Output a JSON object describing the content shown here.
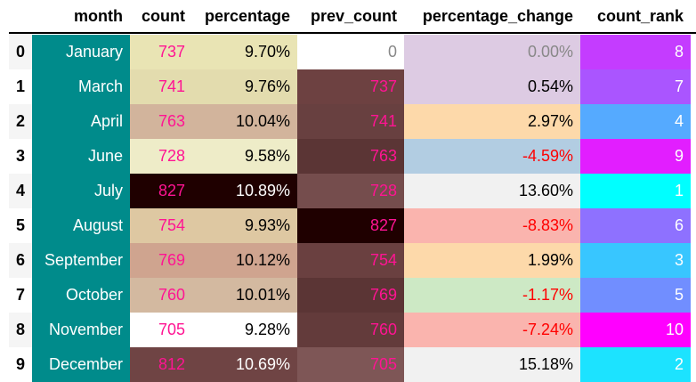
{
  "chart_data": {
    "type": "table",
    "columns": [
      "month",
      "count",
      "percentage",
      "prev_count",
      "percentage_change",
      "count_rank"
    ],
    "rows": [
      {
        "index": "0",
        "month": "January",
        "count": "737",
        "percentage": "9.70%",
        "prev_count": "0",
        "percentage_change": "0.00%",
        "count_rank": "8"
      },
      {
        "index": "1",
        "month": "March",
        "count": "741",
        "percentage": "9.76%",
        "prev_count": "737",
        "percentage_change": "0.54%",
        "count_rank": "7"
      },
      {
        "index": "2",
        "month": "April",
        "count": "763",
        "percentage": "10.04%",
        "prev_count": "741",
        "percentage_change": "2.97%",
        "count_rank": "4"
      },
      {
        "index": "3",
        "month": "June",
        "count": "728",
        "percentage": "9.58%",
        "prev_count": "763",
        "percentage_change": "-4.59%",
        "count_rank": "9"
      },
      {
        "index": "4",
        "month": "July",
        "count": "827",
        "percentage": "10.89%",
        "prev_count": "728",
        "percentage_change": "13.60%",
        "count_rank": "1"
      },
      {
        "index": "5",
        "month": "August",
        "count": "754",
        "percentage": "9.93%",
        "prev_count": "827",
        "percentage_change": "-8.83%",
        "count_rank": "6"
      },
      {
        "index": "6",
        "month": "September",
        "count": "769",
        "percentage": "10.12%",
        "prev_count": "754",
        "percentage_change": "1.99%",
        "count_rank": "3"
      },
      {
        "index": "7",
        "month": "October",
        "count": "760",
        "percentage": "10.01%",
        "prev_count": "769",
        "percentage_change": "-1.17%",
        "count_rank": "5"
      },
      {
        "index": "8",
        "month": "November",
        "count": "705",
        "percentage": "9.28%",
        "prev_count": "760",
        "percentage_change": "-7.24%",
        "count_rank": "10"
      },
      {
        "index": "9",
        "month": "December",
        "count": "812",
        "percentage": "10.69%",
        "prev_count": "705",
        "percentage_change": "15.18%",
        "count_rank": "2"
      }
    ],
    "styles": {
      "month_bg": "#008b8b",
      "month_text": "#ffffff",
      "count_text": "#ff1493",
      "count_percentage_bg": [
        "#e9e4b4",
        "#e3dcae",
        "#d2b49c",
        "#eeecc8",
        "#1f0000",
        "#dec8a2",
        "#cfa48f",
        "#d3b9a0",
        "#ffffff",
        "#6f4444"
      ],
      "count_percentage_text": [
        "#000000",
        "#000000",
        "#000000",
        "#000000",
        "#ffffff",
        "#000000",
        "#000000",
        "#000000",
        "#000000",
        "#ffffff"
      ],
      "prev_count_bg": [
        "#ffffff",
        "#6d4141",
        "#684040",
        "#5b3535",
        "#754d4d",
        "#1f0000",
        "#6a4040",
        "#5b3535",
        "#633b3b",
        "#7e5656"
      ],
      "prev_count_text": [
        "#888888",
        "#ff1493",
        "#ff1493",
        "#ff1493",
        "#ff1493",
        "#ff1493",
        "#ff1493",
        "#ff1493",
        "#ff1493",
        "#ff1493"
      ],
      "pct_change_bg": [
        "#ddcbe3",
        "#ddcbe3",
        "#fdd9aa",
        "#b2cde2",
        "#f1f1f1",
        "#fab4ae",
        "#fdd9aa",
        "#cde9c5",
        "#fab4ae",
        "#f1f1f1"
      ],
      "pct_change_text": [
        "#888888",
        "#000000",
        "#000000",
        "#ff0000",
        "#000000",
        "#ff0000",
        "#000000",
        "#ff0000",
        "#ff0000",
        "#000000"
      ],
      "rank_bg": [
        "#c43cff",
        "#aa55ff",
        "#55aaff",
        "#e21eff",
        "#00ffff",
        "#8e71ff",
        "#38c6ff",
        "#718eff",
        "#ff00ff",
        "#1ce3ff"
      ],
      "rank_text": "#ffffff"
    }
  }
}
